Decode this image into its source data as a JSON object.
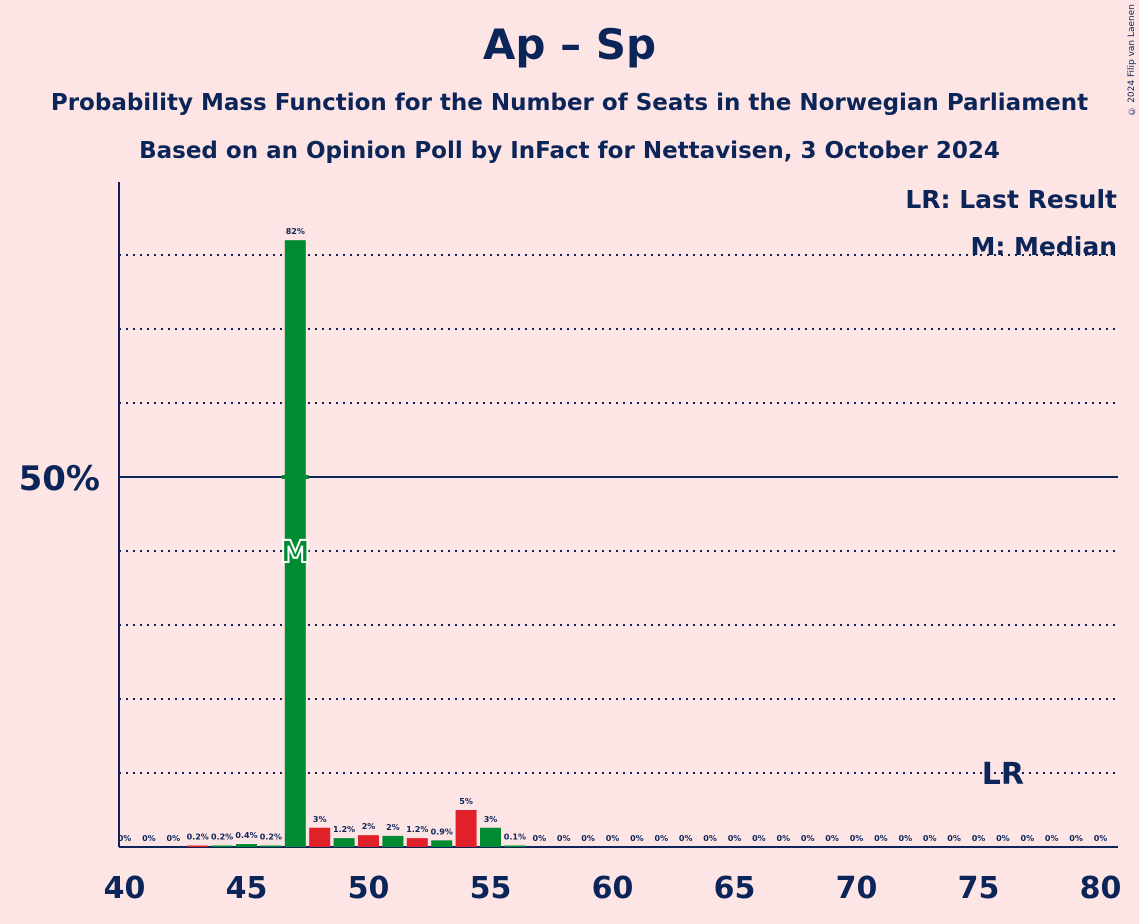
{
  "header": {
    "title": "Ap – Sp",
    "subtitle1": "Probability Mass Function for the Number of Seats in the Norwegian Parliament",
    "subtitle2": "Based on an Opinion Poll by InFact for Nettavisen, 3 October 2024",
    "copyright": "© 2024 Filip van Laenen"
  },
  "legend": {
    "last_result": "LR: Last Result",
    "median": "M: Median"
  },
  "chart_data": {
    "type": "bar",
    "xlim": [
      40,
      80
    ],
    "ylim": [
      0,
      90
    ],
    "x_ticks": [
      40,
      45,
      50,
      55,
      60,
      65,
      70,
      75,
      80
    ],
    "y_major_tick": {
      "value": 50,
      "label": "50%"
    },
    "y_gridlines": [
      10,
      20,
      30,
      40,
      50,
      60,
      70,
      80
    ],
    "median_seat": 47,
    "median_marker": "M",
    "last_result_seat": 76,
    "last_result_marker": "LR",
    "colors": {
      "green": "#008A32",
      "red": "#E0212A",
      "axis": "#0B2559"
    },
    "bars": [
      {
        "seat": 40,
        "value": 0,
        "label": "0%",
        "color": "green"
      },
      {
        "seat": 41,
        "value": 0,
        "label": "0%",
        "color": "red"
      },
      {
        "seat": 42,
        "value": 0,
        "label": "0%",
        "color": "green"
      },
      {
        "seat": 43,
        "value": 0.2,
        "label": "0.2%",
        "color": "red"
      },
      {
        "seat": 44,
        "value": 0.2,
        "label": "0.2%",
        "color": "green"
      },
      {
        "seat": 45,
        "value": 0.4,
        "label": "0.4%",
        "color": "green"
      },
      {
        "seat": 46,
        "value": 0.2,
        "label": "0.2%",
        "color": "green"
      },
      {
        "seat": 47,
        "value": 82,
        "label": "82%",
        "color": "green"
      },
      {
        "seat": 48,
        "value": 2.6,
        "label": "3%",
        "color": "red"
      },
      {
        "seat": 49,
        "value": 1.2,
        "label": "1.2%",
        "color": "green"
      },
      {
        "seat": 50,
        "value": 1.6,
        "label": "2%",
        "color": "red"
      },
      {
        "seat": 51,
        "value": 1.5,
        "label": "2%",
        "color": "green"
      },
      {
        "seat": 52,
        "value": 1.2,
        "label": "1.2%",
        "color": "red"
      },
      {
        "seat": 53,
        "value": 0.9,
        "label": "0.9%",
        "color": "green"
      },
      {
        "seat": 54,
        "value": 5.0,
        "label": "5%",
        "color": "red"
      },
      {
        "seat": 55,
        "value": 2.6,
        "label": "3%",
        "color": "green"
      },
      {
        "seat": 56,
        "value": 0.1,
        "label": "0.1%",
        "color": "green"
      },
      {
        "seat": 57,
        "value": 0,
        "label": "0%",
        "color": "green"
      },
      {
        "seat": 58,
        "value": 0,
        "label": "0%",
        "color": "green"
      },
      {
        "seat": 59,
        "value": 0,
        "label": "0%",
        "color": "green"
      },
      {
        "seat": 60,
        "value": 0,
        "label": "0%",
        "color": "green"
      },
      {
        "seat": 61,
        "value": 0,
        "label": "0%",
        "color": "green"
      },
      {
        "seat": 62,
        "value": 0,
        "label": "0%",
        "color": "green"
      },
      {
        "seat": 63,
        "value": 0,
        "label": "0%",
        "color": "green"
      },
      {
        "seat": 64,
        "value": 0,
        "label": "0%",
        "color": "green"
      },
      {
        "seat": 65,
        "value": 0,
        "label": "0%",
        "color": "green"
      },
      {
        "seat": 66,
        "value": 0,
        "label": "0%",
        "color": "green"
      },
      {
        "seat": 67,
        "value": 0,
        "label": "0%",
        "color": "green"
      },
      {
        "seat": 68,
        "value": 0,
        "label": "0%",
        "color": "green"
      },
      {
        "seat": 69,
        "value": 0,
        "label": "0%",
        "color": "green"
      },
      {
        "seat": 70,
        "value": 0,
        "label": "0%",
        "color": "green"
      },
      {
        "seat": 71,
        "value": 0,
        "label": "0%",
        "color": "green"
      },
      {
        "seat": 72,
        "value": 0,
        "label": "0%",
        "color": "green"
      },
      {
        "seat": 73,
        "value": 0,
        "label": "0%",
        "color": "green"
      },
      {
        "seat": 74,
        "value": 0,
        "label": "0%",
        "color": "green"
      },
      {
        "seat": 75,
        "value": 0,
        "label": "0%",
        "color": "green"
      },
      {
        "seat": 76,
        "value": 0,
        "label": "0%",
        "color": "green"
      },
      {
        "seat": 77,
        "value": 0,
        "label": "0%",
        "color": "green"
      },
      {
        "seat": 78,
        "value": 0,
        "label": "0%",
        "color": "green"
      },
      {
        "seat": 79,
        "value": 0,
        "label": "0%",
        "color": "green"
      },
      {
        "seat": 80,
        "value": 0,
        "label": "0%",
        "color": "green"
      }
    ]
  }
}
